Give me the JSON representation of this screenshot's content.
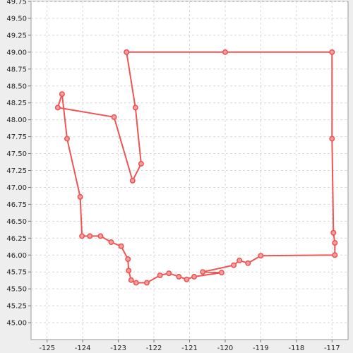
{
  "chart_data": {
    "type": "line",
    "title": "",
    "xlabel": "",
    "ylabel": "",
    "xlim": [
      -125.45,
      -116.55
    ],
    "ylim": [
      44.75,
      49.75
    ],
    "x_ticks": [
      -125,
      -124,
      -123,
      -122,
      -121,
      -120,
      -119,
      -118,
      -117
    ],
    "y_ticks": [
      45.0,
      45.25,
      45.5,
      45.75,
      46.0,
      46.25,
      46.5,
      46.75,
      47.0,
      47.25,
      47.5,
      47.75,
      48.0,
      48.25,
      48.5,
      48.75,
      49.0,
      49.25,
      49.5,
      49.75
    ],
    "grid": true,
    "legend": "none",
    "series": [
      {
        "color": "#ee5555",
        "points": [
          [
            -122.77,
            49.0
          ],
          [
            -120.0,
            49.0
          ],
          [
            -117.0,
            49.0
          ],
          [
            -117.0,
            47.72
          ],
          [
            -116.96,
            46.33
          ],
          [
            -116.92,
            46.18
          ],
          [
            -116.92,
            46.0
          ],
          [
            -119.0,
            45.99
          ],
          [
            -119.36,
            45.88
          ],
          [
            -119.6,
            45.92
          ],
          [
            -119.76,
            45.85
          ],
          [
            -120.63,
            45.75
          ],
          [
            -120.1,
            45.74
          ],
          [
            -120.87,
            45.68
          ],
          [
            -121.08,
            45.64
          ],
          [
            -121.3,
            45.68
          ],
          [
            -121.58,
            45.73
          ],
          [
            -121.83,
            45.7
          ],
          [
            -122.2,
            45.59
          ],
          [
            -122.5,
            45.59
          ],
          [
            -122.64,
            45.63
          ],
          [
            -122.71,
            45.77
          ],
          [
            -122.73,
            45.94
          ],
          [
            -122.92,
            46.13
          ],
          [
            -123.2,
            46.19
          ],
          [
            -123.5,
            46.28
          ],
          [
            -123.8,
            46.28
          ],
          [
            -124.02,
            46.28
          ],
          [
            -124.07,
            46.86
          ],
          [
            -124.44,
            47.72
          ],
          [
            -124.58,
            48.38
          ],
          [
            -124.7,
            48.18
          ],
          [
            -123.12,
            48.04
          ],
          [
            -122.6,
            47.1
          ],
          [
            -122.36,
            47.35
          ],
          [
            -122.52,
            48.18
          ],
          [
            -122.77,
            49.0
          ]
        ]
      }
    ]
  }
}
